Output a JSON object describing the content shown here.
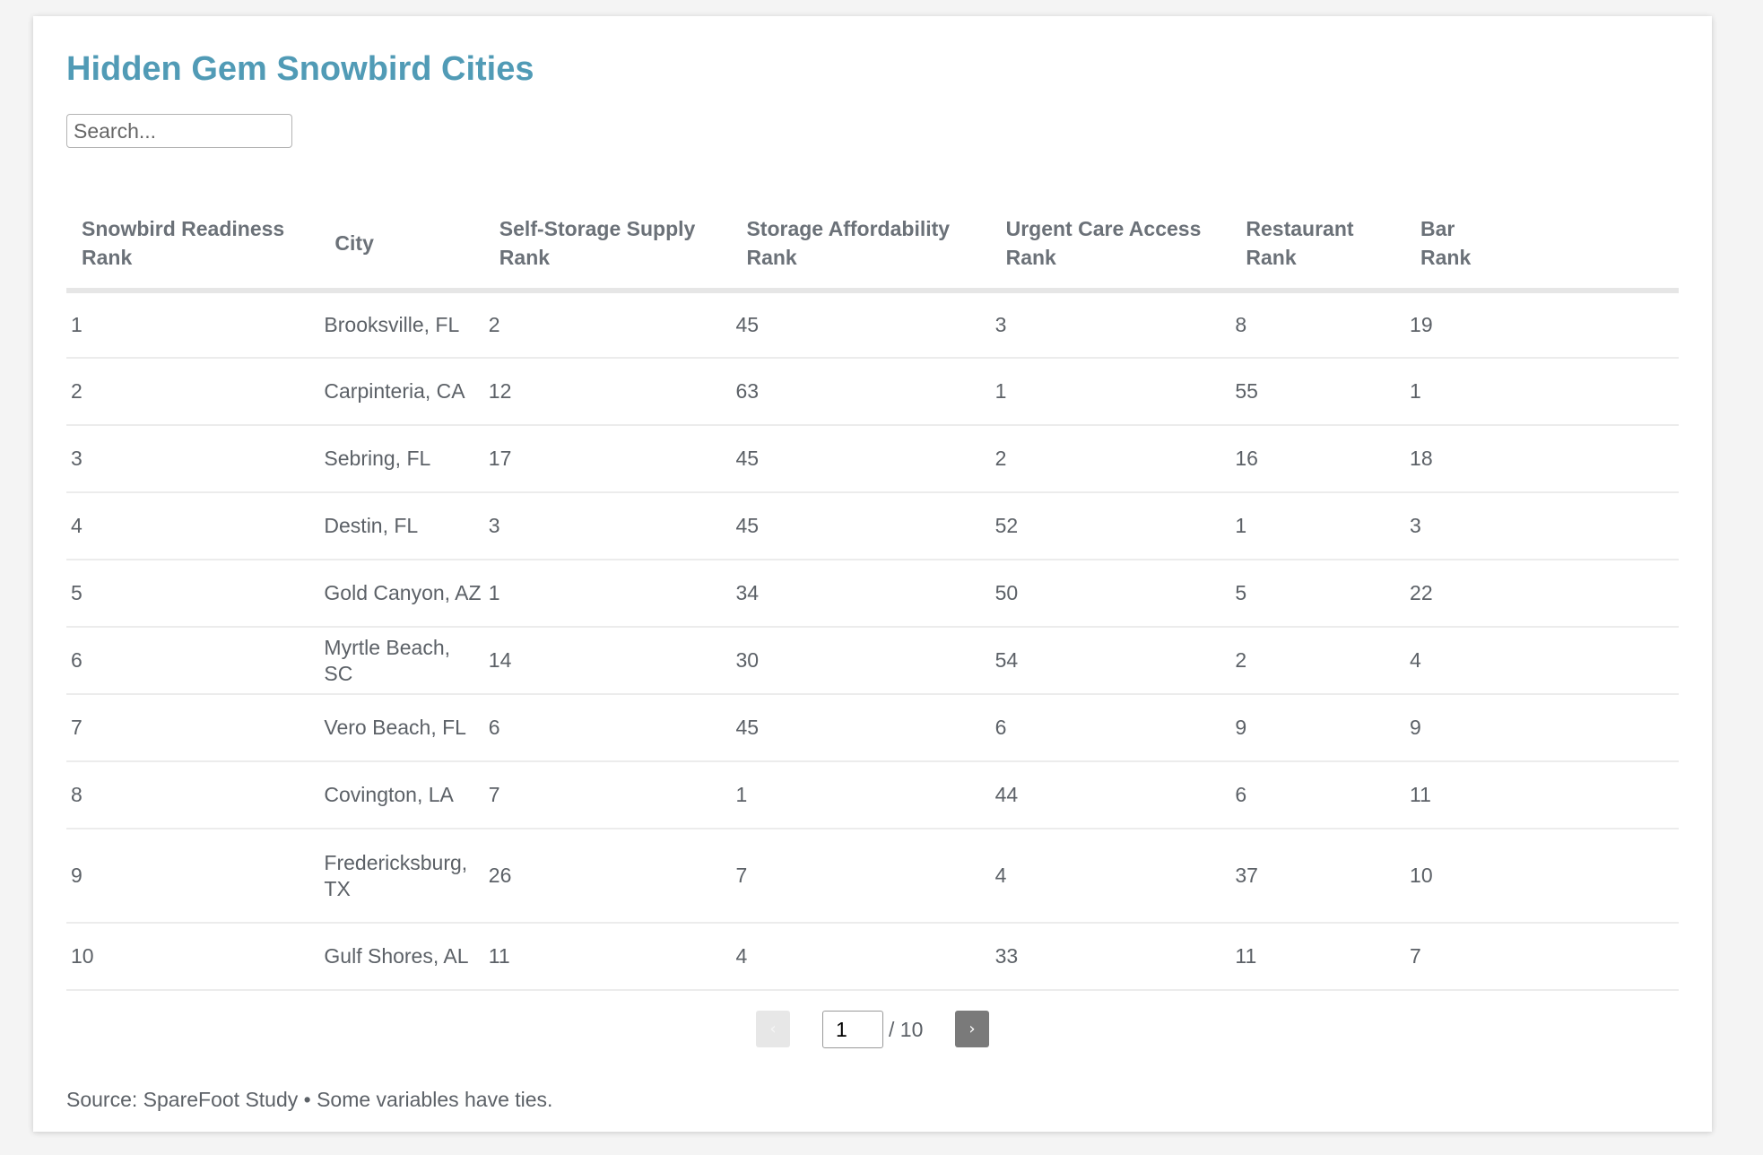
{
  "title": "Hidden Gem Snowbird Cities",
  "search": {
    "placeholder": "Search..."
  },
  "columns": [
    "Snowbird Readiness Rank",
    "City",
    "Self-Storage Supply Rank",
    "Storage Affordability Rank",
    "Urgent Care Access Rank",
    "Restaurant Rank",
    "Bar Rank"
  ],
  "rows": [
    [
      "1",
      "Brooksville, FL",
      "2",
      "45",
      "3",
      "8",
      "19"
    ],
    [
      "2",
      "Carpinteria, CA",
      "12",
      "63",
      "1",
      "55",
      "1"
    ],
    [
      "3",
      "Sebring, FL",
      "17",
      "45",
      "2",
      "16",
      "18"
    ],
    [
      "4",
      "Destin, FL",
      "3",
      "45",
      "52",
      "1",
      "3"
    ],
    [
      "5",
      "Gold Canyon, AZ",
      "1",
      "34",
      "50",
      "5",
      "22"
    ],
    [
      "6",
      "Myrtle Beach, SC",
      "14",
      "30",
      "54",
      "2",
      "4"
    ],
    [
      "7",
      "Vero Beach, FL",
      "6",
      "45",
      "6",
      "9",
      "9"
    ],
    [
      "8",
      "Covington, LA",
      "7",
      "1",
      "44",
      "6",
      "11"
    ],
    [
      "9",
      "Fredericksburg, TX",
      "26",
      "7",
      "4",
      "37",
      "10"
    ],
    [
      "10",
      "Gulf Shores, AL",
      "11",
      "4",
      "33",
      "11",
      "7"
    ]
  ],
  "pagination": {
    "prev_label": "‹",
    "next_label": "›",
    "current_page": "1",
    "total_label": "/ 10"
  },
  "footer": {
    "source": "Source: SpareFoot Study • Some variables have ties."
  },
  "colors": {
    "title": "#519bb6",
    "next_button": "#7a7a7a",
    "prev_button": "#e7e7e7"
  }
}
